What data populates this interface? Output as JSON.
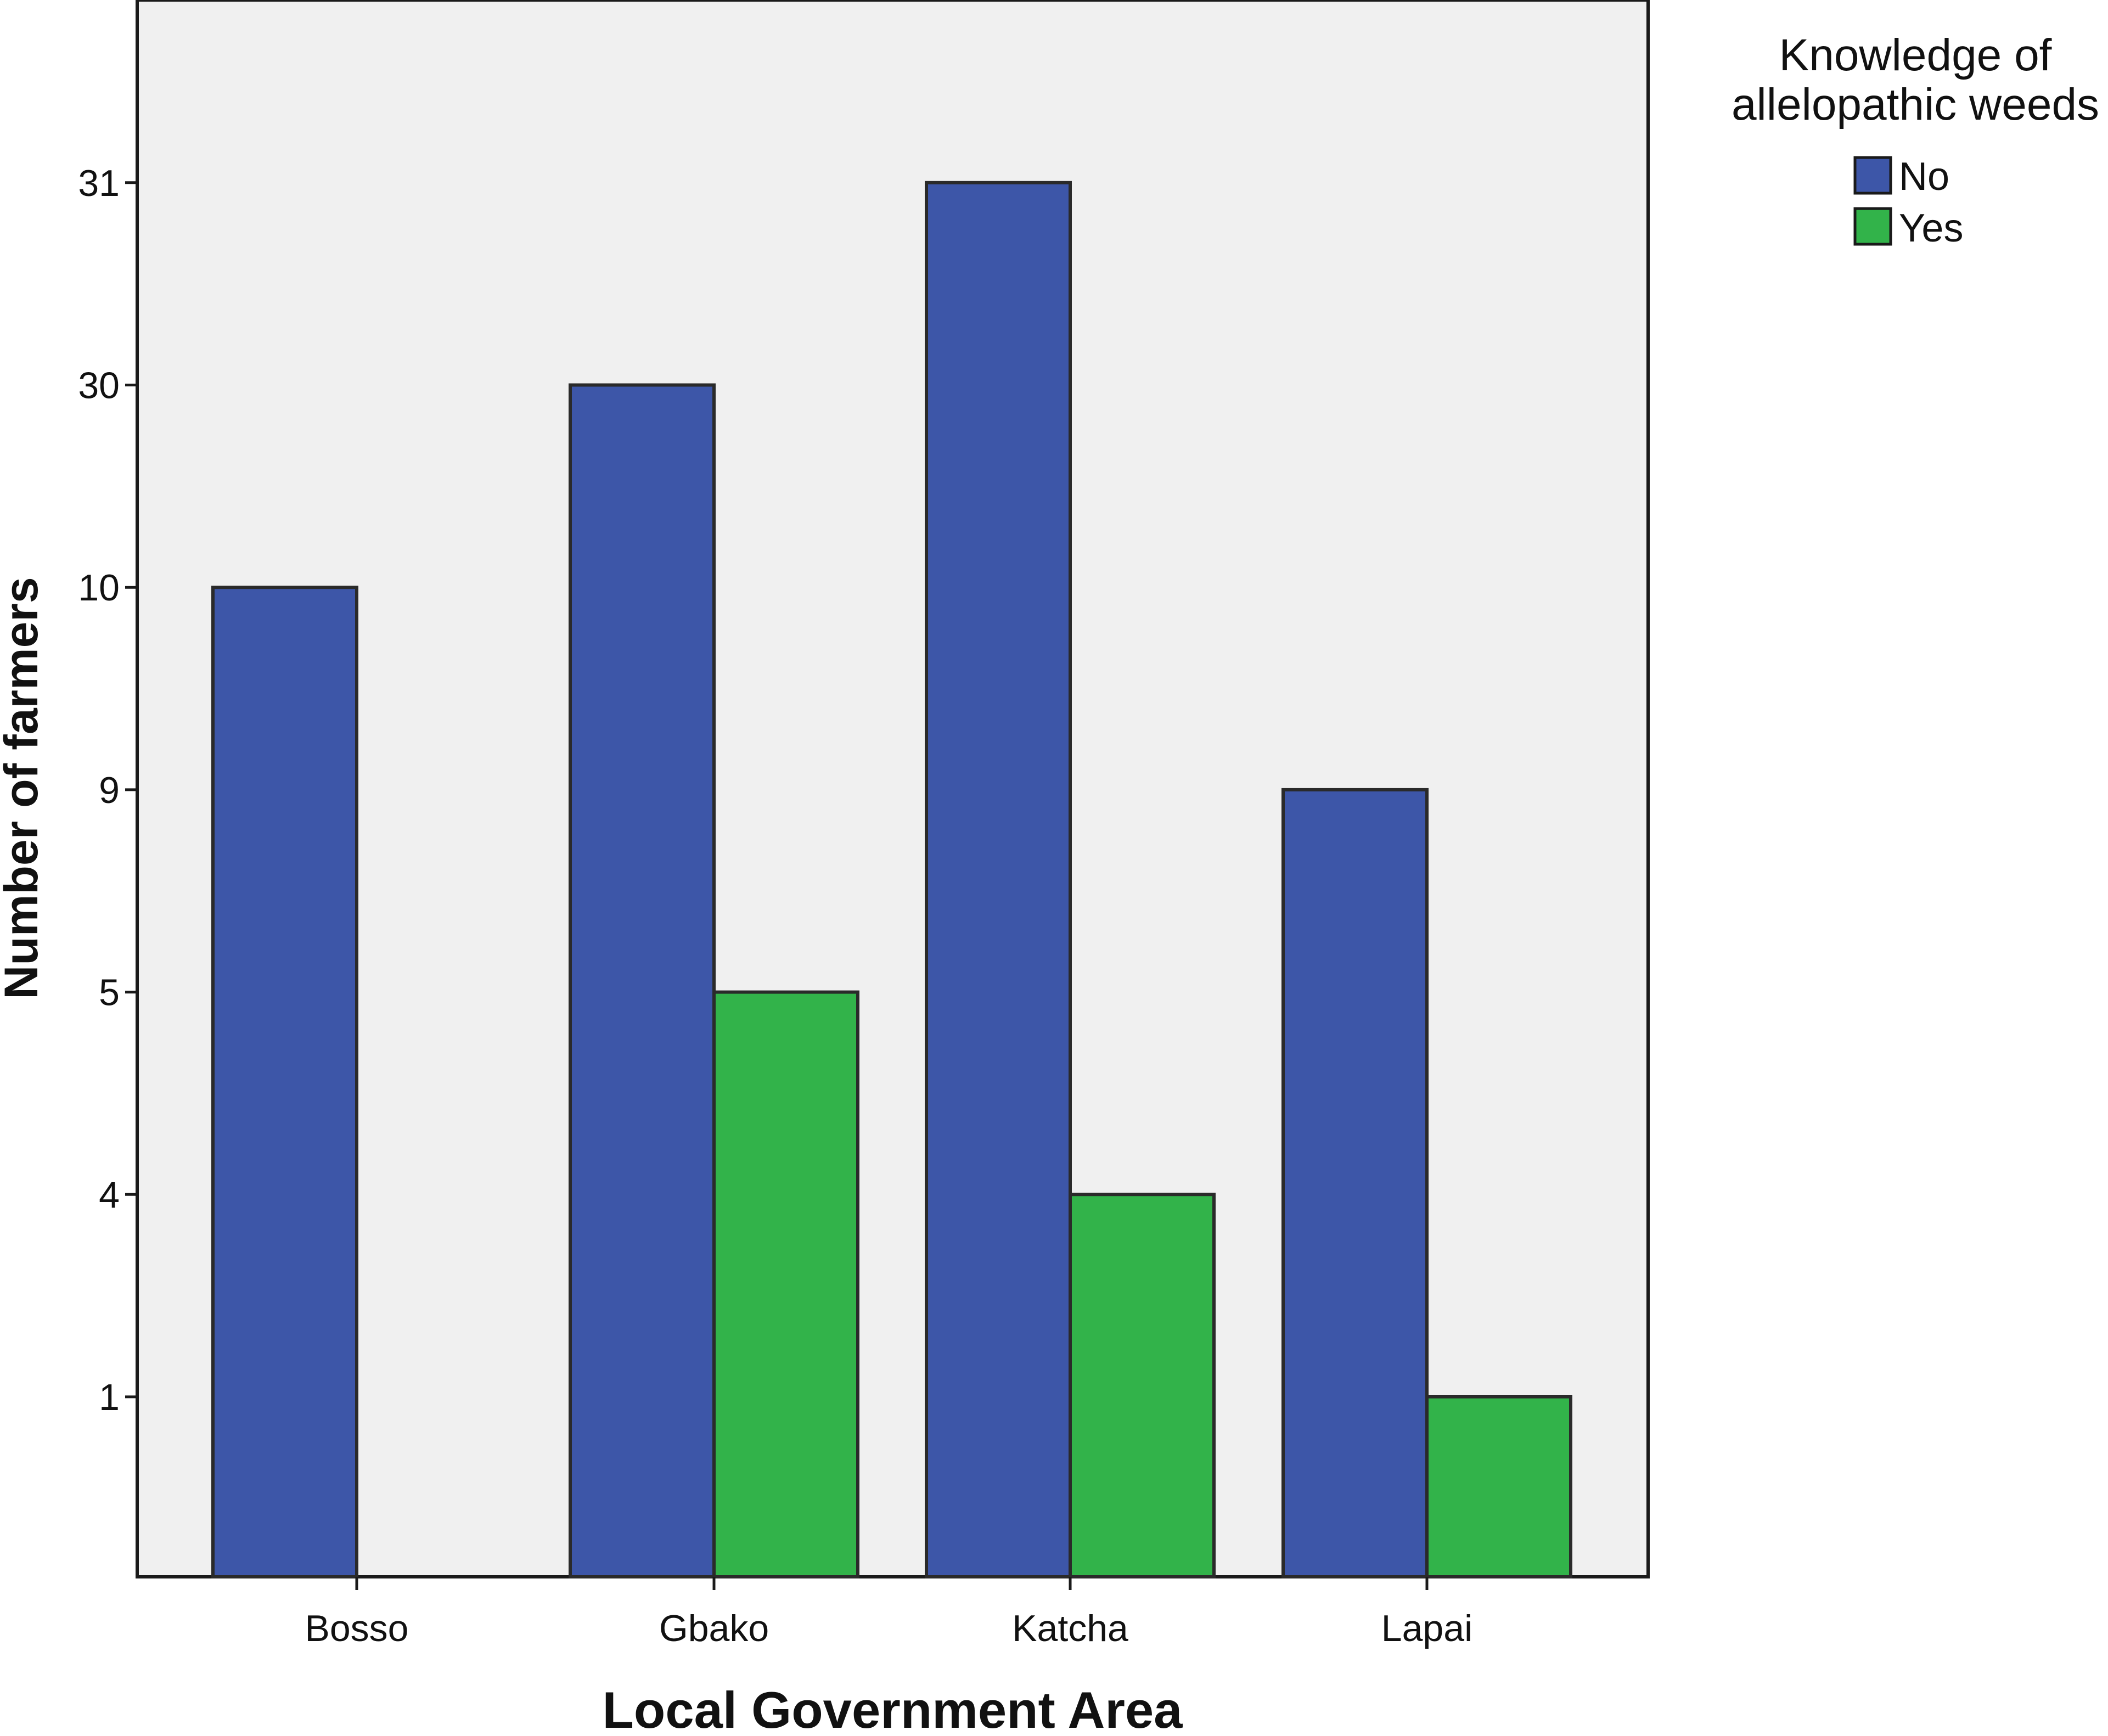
{
  "chart_data": {
    "type": "bar",
    "xlabel": "Local Government Area",
    "ylabel": "Number of farmers",
    "categories": [
      "Bosso",
      "Gbako",
      "Katcha",
      "Lapai"
    ],
    "y_ticks": [
      "1",
      "4",
      "5",
      "9",
      "10",
      "30",
      "31"
    ],
    "y_scale": "categorical rank (ticks equally spaced)",
    "legend": {
      "title_lines": [
        "Knowledge of",
        "allelopathic weeds"
      ],
      "placement": "right, outside plot"
    },
    "series": [
      {
        "name": "No",
        "color": "#3d56a8",
        "values": [
          10,
          30,
          31,
          9
        ]
      },
      {
        "name": "Yes",
        "color": "#32b34a",
        "values": [
          null,
          5,
          4,
          1
        ]
      }
    ],
    "plot_background": "#f0f0f0",
    "grid": false
  }
}
